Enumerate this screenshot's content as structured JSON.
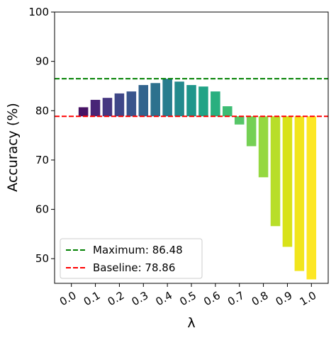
{
  "chart_data": {
    "type": "bar",
    "xlabel": "λ",
    "ylabel": "Accuracy (%)",
    "x": [
      0.05,
      0.1,
      0.15,
      0.2,
      0.25,
      0.3,
      0.35,
      0.4,
      0.45,
      0.5,
      0.55,
      0.6,
      0.65,
      0.7,
      0.75,
      0.8,
      0.85,
      0.9,
      0.95,
      1.0
    ],
    "values": [
      80.7,
      82.2,
      82.6,
      83.5,
      83.9,
      85.2,
      85.6,
      86.48,
      85.9,
      85.2,
      84.9,
      83.9,
      80.9,
      77.2,
      72.8,
      66.5,
      56.6,
      52.4,
      47.5,
      45.8
    ],
    "colors": [
      "#471365",
      "#482576",
      "#453781",
      "#3f4788",
      "#39558c",
      "#32648e",
      "#2d718e",
      "#287d8e",
      "#238a8d",
      "#1f968b",
      "#20a386",
      "#29af7f",
      "#3dbc74",
      "#56c667",
      "#75d054",
      "#95d840",
      "#b8de29",
      "#d8e219",
      "#f1e51d",
      "#fde725"
    ],
    "hlines": [
      {
        "label": "Maximum: 86.48",
        "value": 86.48,
        "color": "#008000"
      },
      {
        "label": "Baseline: 78.86",
        "value": 78.86,
        "color": "#ff0000"
      }
    ],
    "xlim": [
      -0.07,
      1.07
    ],
    "xticks": [
      {
        "value": 0,
        "label": "0.0"
      },
      0.1,
      0.2,
      0.3,
      0.4,
      0.5,
      0.6,
      0.7,
      0.8,
      0.9,
      {
        "value": 1,
        "label": "1.0"
      }
    ],
    "ylim": [
      45,
      100
    ],
    "yticks": [
      50,
      60,
      70,
      80,
      90,
      100
    ],
    "legend": "lower left"
  }
}
